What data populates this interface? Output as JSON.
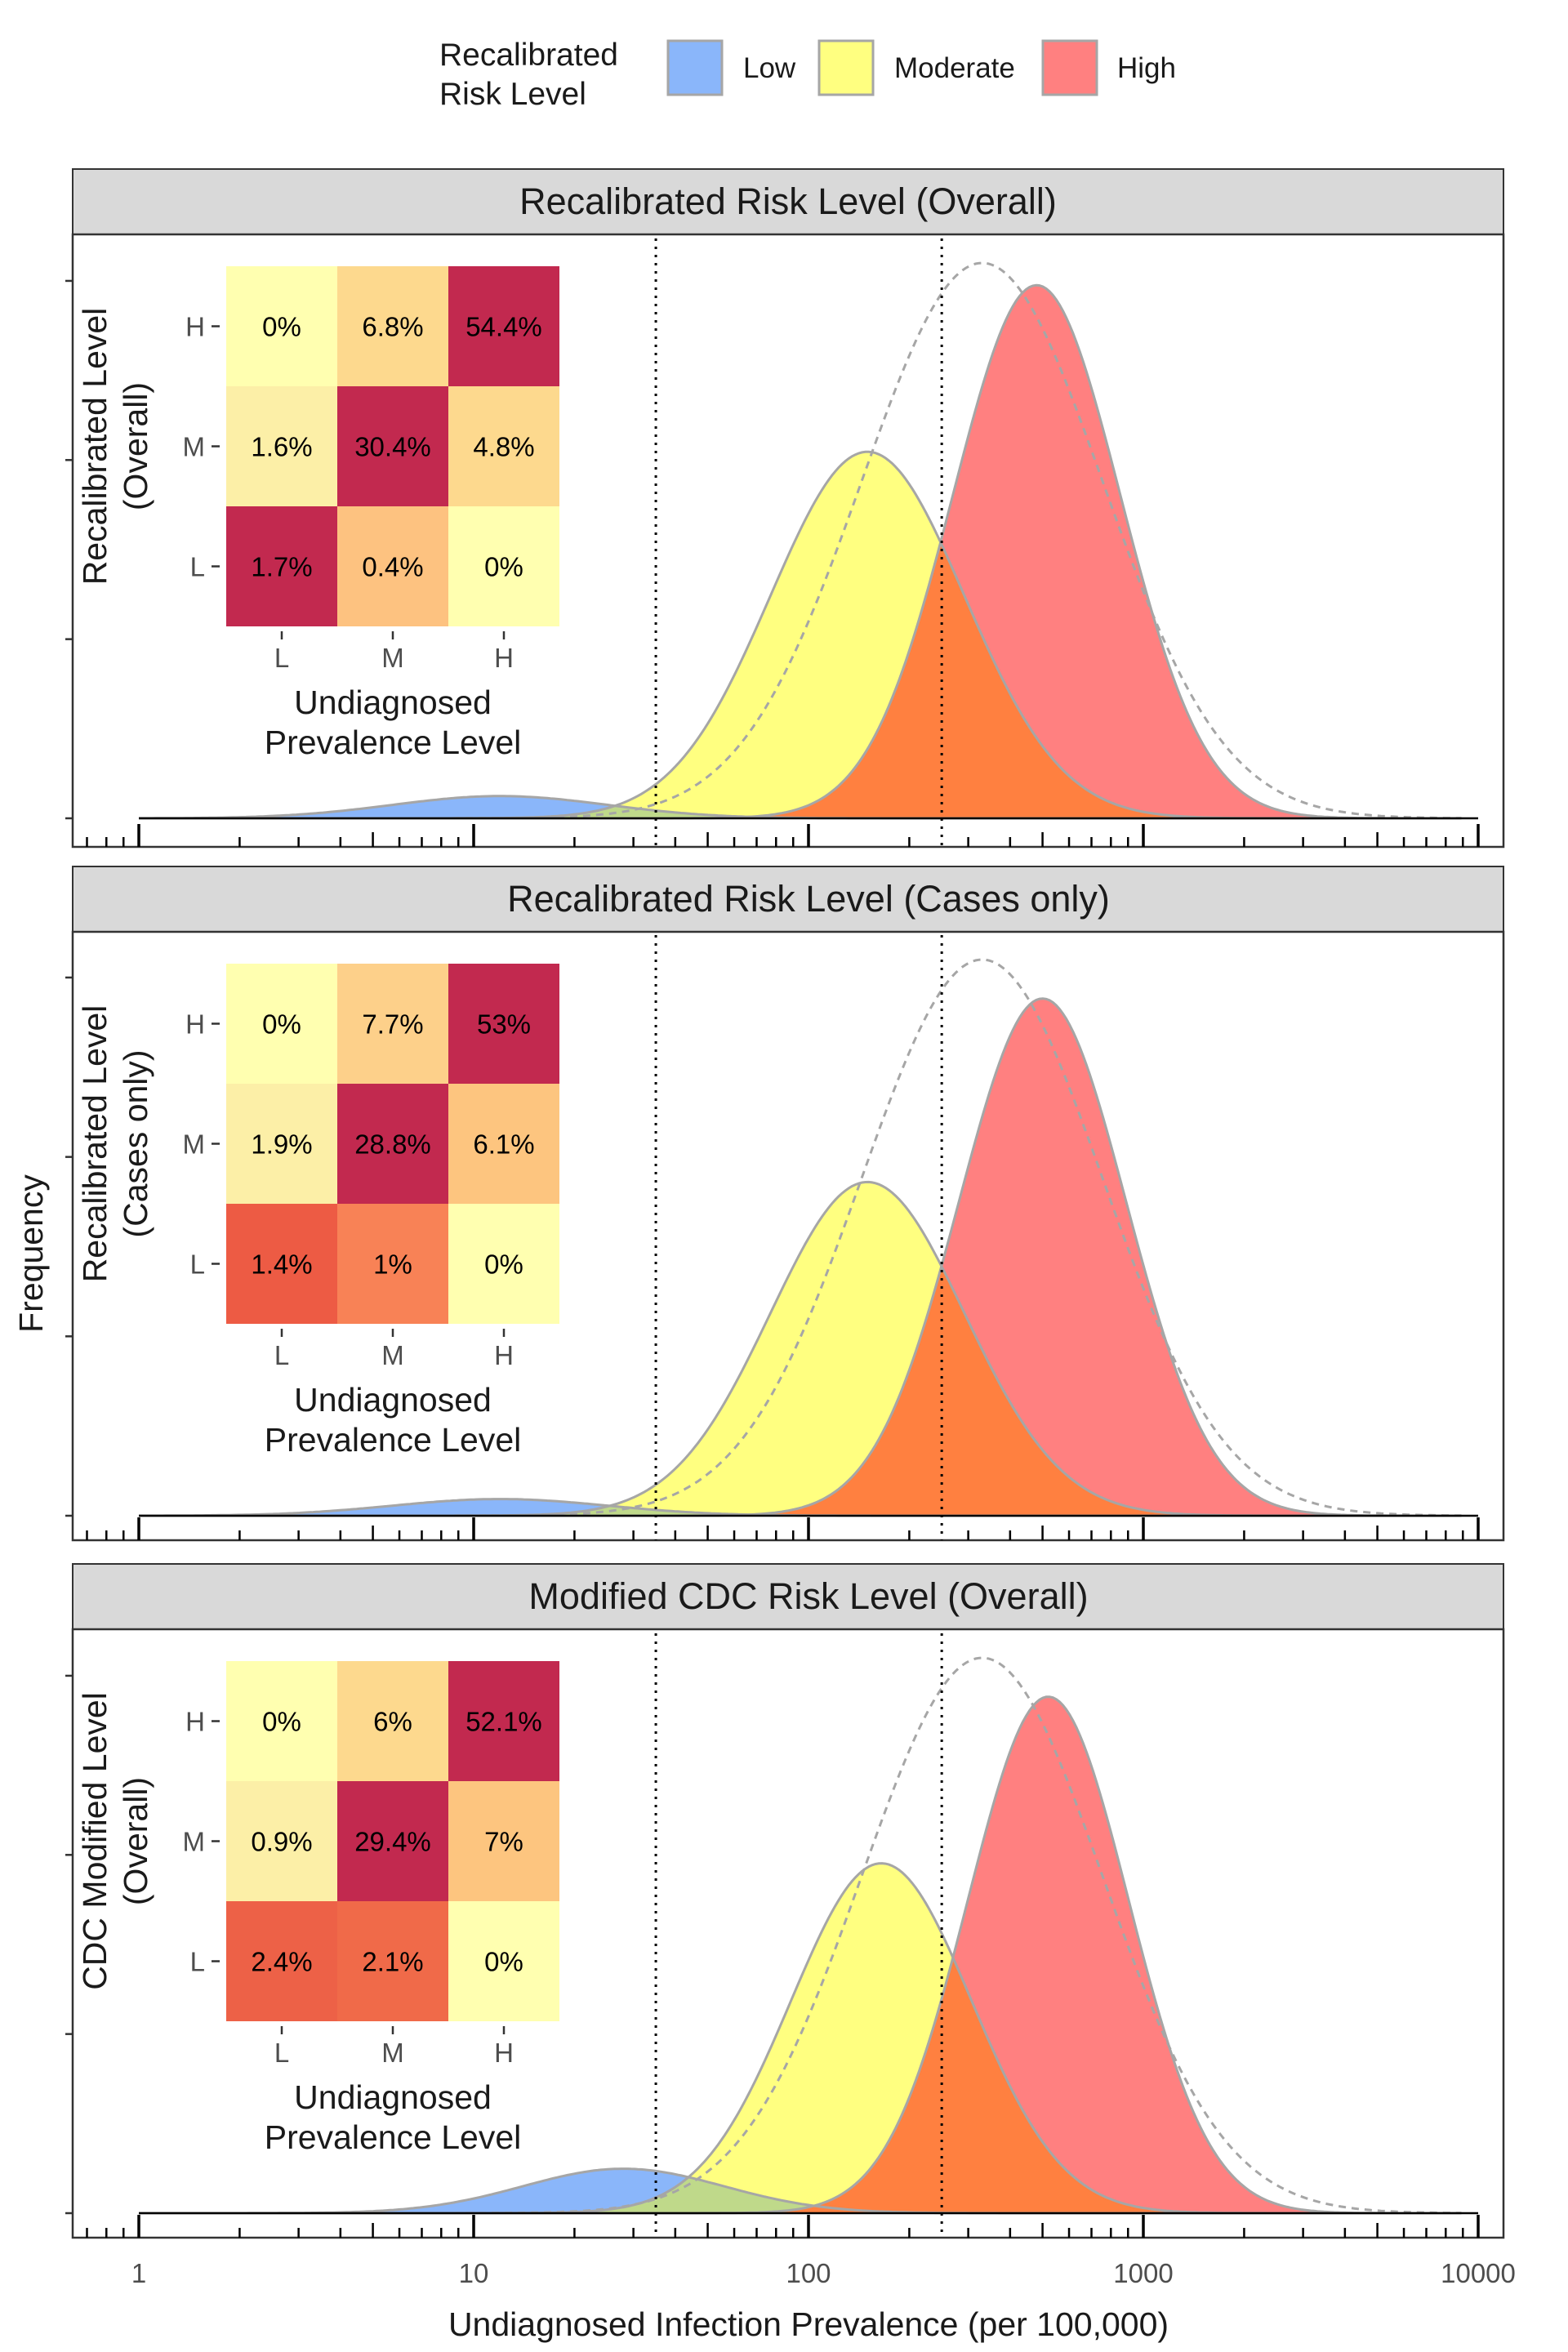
{
  "legend": {
    "title_line1": "Recalibrated",
    "title_line2": "Risk Level",
    "items": [
      {
        "label": "Low",
        "color": "#8AB6FA"
      },
      {
        "label": "Moderate",
        "color": "#FFFF80"
      },
      {
        "label": "High",
        "color": "#FF8080"
      }
    ]
  },
  "y_axis_label": "Frequency",
  "x_axis_label": "Undiagnosed Infection Prevalence (per 100,000)",
  "colors": {
    "low": "#8AB6FA",
    "moderate": "#FFFF80",
    "high": "#FF8080",
    "overlap_low_moderate": "#BFD98A",
    "overlap_moderate_high": "#FF8040",
    "strip": "#D9D9D9",
    "outline": "#A6A6A6"
  },
  "chart_data": {
    "type": "area",
    "x_scale": "log10",
    "xlim": [
      0.6,
      15000
    ],
    "x_ticks": [
      1,
      10,
      100,
      1000,
      10000
    ],
    "x_tick_labels": [
      "1",
      "10",
      "100",
      "1000",
      "10000"
    ],
    "x_minor_ticks": true,
    "reference_lines": [
      35,
      250
    ],
    "y_ticks_labeled": false,
    "grid": false,
    "legend_position": "top",
    "panels": [
      {
        "title": "Recalibrated Risk Level (Overall)",
        "series": [
          {
            "name": "Low",
            "peak_x": 12,
            "peak": 0.04,
            "sigma": 0.32
          },
          {
            "name": "Moderate",
            "peak_x": 150,
            "peak": 0.66,
            "sigma": 0.29
          },
          {
            "name": "High",
            "peak_x": 480,
            "peak": 0.96,
            "sigma": 0.25
          },
          {
            "name": "Total",
            "peak_x": 330,
            "peak": 1.0,
            "sigma": 0.36
          }
        ],
        "inset": {
          "ylabel": [
            "Recalibrated Level",
            "(Overall)"
          ],
          "xlabel": [
            "Undiagnosed",
            "Prevalence Level"
          ],
          "col_labels": [
            "L",
            "M",
            "H"
          ],
          "row_labels": [
            "H",
            "M",
            "L"
          ],
          "cells": [
            [
              "0%",
              "6.8%",
              "54.4%"
            ],
            [
              "1.6%",
              "30.4%",
              "4.8%"
            ],
            [
              "1.7%",
              "0.4%",
              "0%"
            ]
          ],
          "fill": [
            [
              "#FFFFB0",
              "#FDD98E",
              "#C2294F"
            ],
            [
              "#FCEFA7",
              "#C2294F",
              "#FDD98E"
            ],
            [
              "#C2294F",
              "#FDC280",
              "#FFFFB0"
            ]
          ]
        }
      },
      {
        "title": "Recalibrated Risk Level (Cases only)",
        "series": [
          {
            "name": "Low",
            "peak_x": 12,
            "peak": 0.03,
            "sigma": 0.32
          },
          {
            "name": "Moderate",
            "peak_x": 150,
            "peak": 0.6,
            "sigma": 0.29
          },
          {
            "name": "High",
            "peak_x": 500,
            "peak": 0.93,
            "sigma": 0.25
          },
          {
            "name": "Total",
            "peak_x": 330,
            "peak": 1.0,
            "sigma": 0.36
          }
        ],
        "inset": {
          "ylabel": [
            "Recalibrated Level",
            "(Cases only)"
          ],
          "xlabel": [
            "Undiagnosed",
            "Prevalence Level"
          ],
          "col_labels": [
            "L",
            "M",
            "H"
          ],
          "row_labels": [
            "H",
            "M",
            "L"
          ],
          "cells": [
            [
              "0%",
              "7.7%",
              "53%"
            ],
            [
              "1.9%",
              "28.8%",
              "6.1%"
            ],
            [
              "1.4%",
              "1%",
              "0%"
            ]
          ],
          "fill": [
            [
              "#FFFFB0",
              "#FDD08A",
              "#C2294F"
            ],
            [
              "#FCEFA7",
              "#C2294F",
              "#FDC57F"
            ],
            [
              "#ED5B44",
              "#F88256",
              "#FFFFB0"
            ]
          ]
        }
      },
      {
        "title": "Modified CDC Risk Level (Overall)",
        "series": [
          {
            "name": "Low",
            "peak_x": 28,
            "peak": 0.08,
            "sigma": 0.3
          },
          {
            "name": "Moderate",
            "peak_x": 165,
            "peak": 0.63,
            "sigma": 0.27
          },
          {
            "name": "High",
            "peak_x": 520,
            "peak": 0.93,
            "sigma": 0.24
          },
          {
            "name": "Total",
            "peak_x": 330,
            "peak": 1.0,
            "sigma": 0.36
          }
        ],
        "inset": {
          "ylabel": [
            "CDC Modified Level",
            "(Overall)"
          ],
          "xlabel": [
            "Undiagnosed",
            "Prevalence Level"
          ],
          "col_labels": [
            "L",
            "M",
            "H"
          ],
          "row_labels": [
            "H",
            "M",
            "L"
          ],
          "cells": [
            [
              "0%",
              "6%",
              "52.1%"
            ],
            [
              "0.9%",
              "29.4%",
              "7%"
            ],
            [
              "2.4%",
              "2.1%",
              "0%"
            ]
          ],
          "fill": [
            [
              "#FFFFB0",
              "#FDD98E",
              "#C2294F"
            ],
            [
              "#FCEFA7",
              "#C2294F",
              "#FDC57F"
            ],
            [
              "#ED6147",
              "#F06A49",
              "#FFFFB0"
            ]
          ]
        }
      }
    ]
  }
}
